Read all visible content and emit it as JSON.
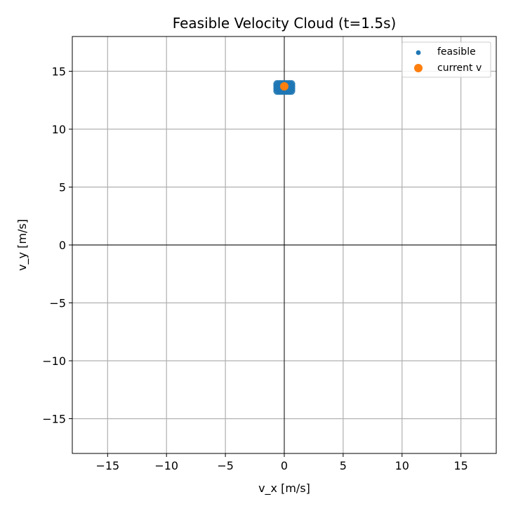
{
  "chart_data": {
    "type": "scatter",
    "title": "Feasible Velocity Cloud (t=1.5s)",
    "xlabel": "v_x [m/s]",
    "ylabel": "v_y [m/s]",
    "xlim": [
      -18,
      18
    ],
    "ylim": [
      -18,
      18
    ],
    "xticks": [
      -15,
      -10,
      -5,
      0,
      5,
      10,
      15
    ],
    "yticks": [
      -15,
      -10,
      -5,
      0,
      5,
      10,
      15
    ],
    "xtick_labels": [
      "−15",
      "−10",
      "−5",
      "0",
      "5",
      "10",
      "15"
    ],
    "ytick_labels": [
      "−15",
      "−10",
      "−5",
      "0",
      "5",
      "10",
      "15"
    ],
    "grid": true,
    "zero_lines": true,
    "legend_position": "top-right",
    "series": [
      {
        "name": "feasible",
        "color": "#1f77b4",
        "marker_size": "small",
        "points": [
          [
            -0.6,
            13.9
          ],
          [
            -0.4,
            13.9
          ],
          [
            -0.2,
            13.9
          ],
          [
            0.0,
            13.9
          ],
          [
            0.2,
            13.9
          ],
          [
            0.4,
            13.9
          ],
          [
            0.6,
            13.9
          ],
          [
            -0.6,
            13.7
          ],
          [
            -0.4,
            13.7
          ],
          [
            -0.2,
            13.7
          ],
          [
            0.0,
            13.7
          ],
          [
            0.2,
            13.7
          ],
          [
            0.4,
            13.7
          ],
          [
            0.6,
            13.7
          ],
          [
            -0.6,
            13.5
          ],
          [
            -0.4,
            13.5
          ],
          [
            -0.2,
            13.5
          ],
          [
            0.0,
            13.5
          ],
          [
            0.2,
            13.5
          ],
          [
            0.4,
            13.5
          ],
          [
            0.6,
            13.5
          ],
          [
            -0.6,
            13.3
          ],
          [
            -0.4,
            13.3
          ],
          [
            -0.2,
            13.3
          ],
          [
            0.0,
            13.3
          ],
          [
            0.2,
            13.3
          ],
          [
            0.4,
            13.3
          ],
          [
            0.6,
            13.3
          ],
          [
            -0.5,
            13.8
          ],
          [
            -0.3,
            13.8
          ],
          [
            -0.1,
            13.8
          ],
          [
            0.1,
            13.8
          ],
          [
            0.3,
            13.8
          ],
          [
            0.5,
            13.8
          ],
          [
            -0.5,
            13.6
          ],
          [
            -0.3,
            13.6
          ],
          [
            -0.1,
            13.6
          ],
          [
            0.1,
            13.6
          ],
          [
            0.3,
            13.6
          ],
          [
            0.5,
            13.6
          ],
          [
            -0.5,
            13.4
          ],
          [
            -0.3,
            13.4
          ],
          [
            -0.1,
            13.4
          ],
          [
            0.1,
            13.4
          ],
          [
            0.3,
            13.4
          ],
          [
            0.5,
            13.4
          ]
        ]
      },
      {
        "name": "current v",
        "color": "#ff7f0e",
        "marker_size": "large",
        "points": [
          [
            0.0,
            13.7
          ]
        ]
      }
    ]
  }
}
